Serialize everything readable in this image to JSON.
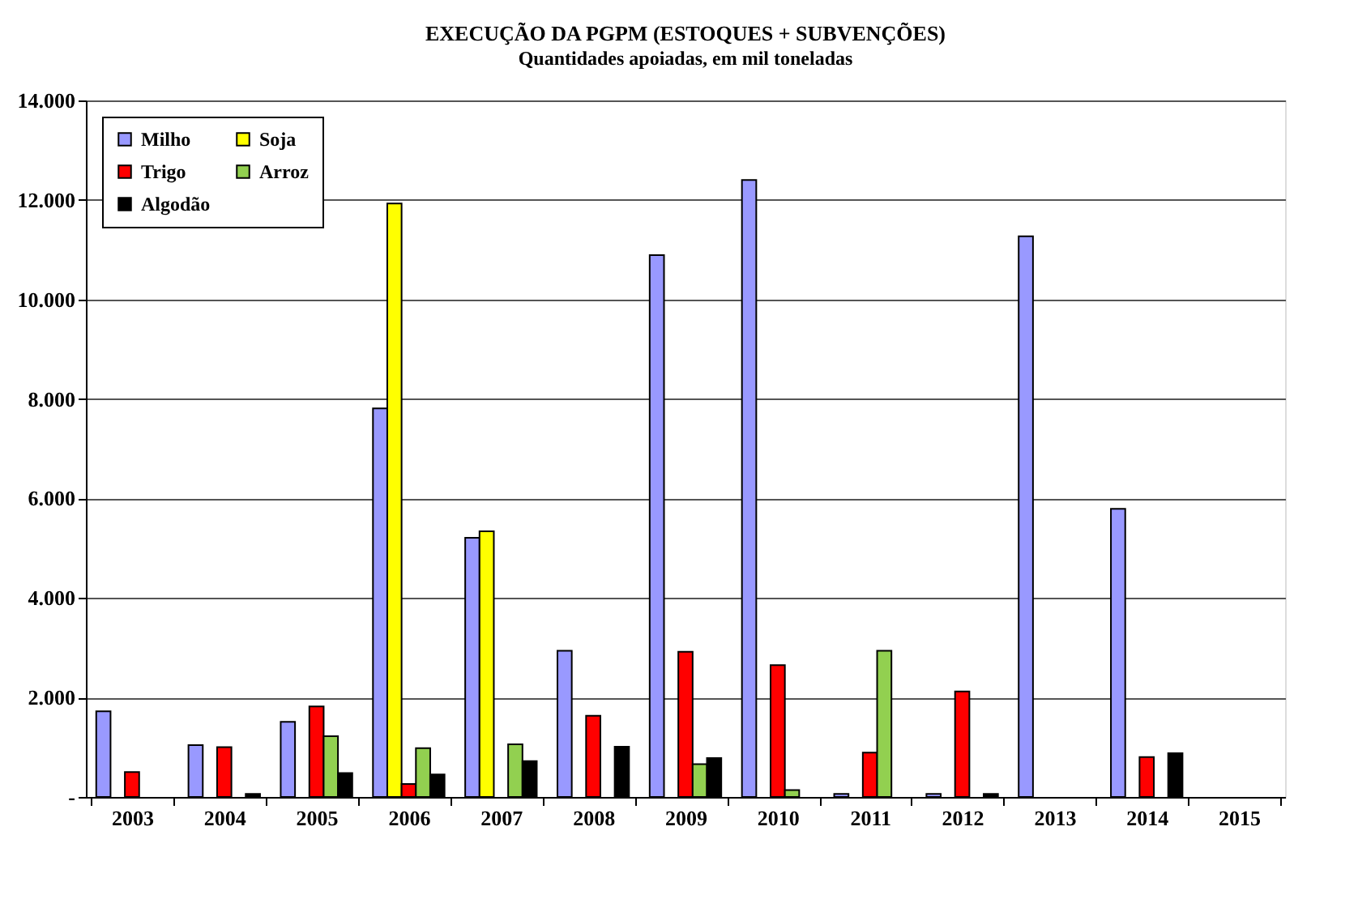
{
  "chart_data": {
    "type": "bar",
    "title": "EXECUÇÃO  DA PGPM (ESTOQUES + SUBVENÇÕES)",
    "subtitle": "Quantidades  apoiadas,  em mil toneladas",
    "categories": [
      "2003",
      "2004",
      "2005",
      "2006",
      "2007",
      "2008",
      "2009",
      "2010",
      "2011",
      "2012",
      "2013",
      "2014",
      "2015"
    ],
    "series": [
      {
        "name": "Milho",
        "color": "#9999ff",
        "values": [
          1720,
          1040,
          1510,
          7810,
          5210,
          2940,
          10890,
          12400,
          60,
          60,
          11270,
          5790,
          null
        ]
      },
      {
        "name": "Soja",
        "color": "#ffff00",
        "values": [
          null,
          null,
          null,
          11930,
          5340,
          null,
          null,
          null,
          null,
          null,
          null,
          null,
          null
        ]
      },
      {
        "name": "Trigo",
        "color": "#ff0000",
        "values": [
          500,
          1000,
          1820,
          260,
          null,
          1630,
          2920,
          2650,
          890,
          2120,
          null,
          800,
          null
        ]
      },
      {
        "name": "Arroz",
        "color": "#92d050",
        "values": [
          null,
          null,
          1220,
          980,
          1060,
          null,
          660,
          140,
          2940,
          null,
          null,
          null,
          null
        ]
      },
      {
        "name": "Algodão",
        "color": "#000000",
        "values": [
          null,
          60,
          480,
          450,
          720,
          1010,
          780,
          null,
          null,
          60,
          null,
          880,
          null
        ]
      }
    ],
    "ylim": [
      0,
      14000
    ],
    "yticks": [
      {
        "value": 0,
        "label": "-"
      },
      {
        "value": 2000,
        "label": "2.000"
      },
      {
        "value": 4000,
        "label": "4.000"
      },
      {
        "value": 6000,
        "label": "6.000"
      },
      {
        "value": 8000,
        "label": "8.000"
      },
      {
        "value": 10000,
        "label": "10.000"
      },
      {
        "value": 12000,
        "label": "12.000"
      },
      {
        "value": 14000,
        "label": "14.000"
      }
    ],
    "grid": "y",
    "legend": "top left"
  }
}
